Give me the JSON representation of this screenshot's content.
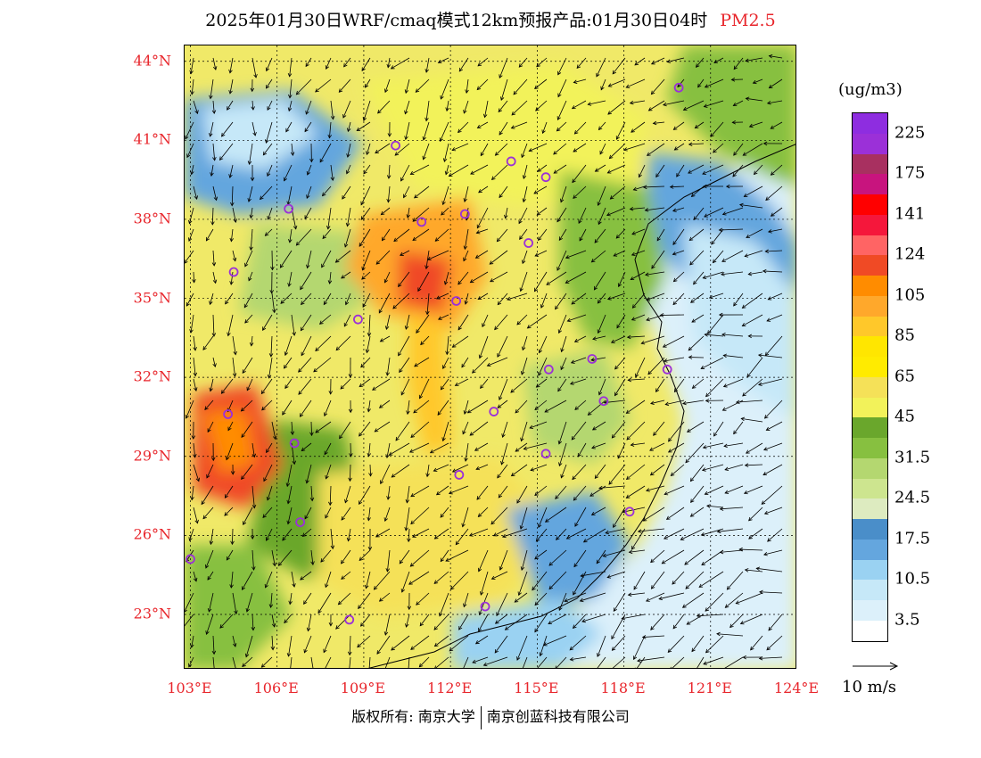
{
  "title": "2025年01月30日WRF/cmaq模式12km预报产品:01月30日04时",
  "species": "PM2.5",
  "map": {
    "lat_labels": [
      {
        "text": "44°N",
        "lat": 44
      },
      {
        "text": "41°N",
        "lat": 41
      },
      {
        "text": "38°N",
        "lat": 38
      },
      {
        "text": "35°N",
        "lat": 35
      },
      {
        "text": "32°N",
        "lat": 32
      },
      {
        "text": "29°N",
        "lat": 29
      },
      {
        "text": "26°N",
        "lat": 26
      },
      {
        "text": "23°N",
        "lat": 23
      }
    ],
    "lon_labels": [
      {
        "text": "103°E",
        "lon": 103
      },
      {
        "text": "106°E",
        "lon": 106
      },
      {
        "text": "109°E",
        "lon": 109
      },
      {
        "text": "112°E",
        "lon": 112
      },
      {
        "text": "115°E",
        "lon": 115
      },
      {
        "text": "118°E",
        "lon": 118
      },
      {
        "text": "121°E",
        "lon": 121
      },
      {
        "text": "124°E",
        "lon": 124
      }
    ],
    "extent": {
      "lon_min": 102.8,
      "lon_max": 124,
      "lat_min": 20.9,
      "lat_max": 44.6
    },
    "cities": [
      {
        "lon": 119.9,
        "lat": 43.0
      },
      {
        "lon": 110.1,
        "lat": 40.8
      },
      {
        "lon": 114.1,
        "lat": 40.2
      },
      {
        "lon": 115.3,
        "lat": 39.6
      },
      {
        "lon": 106.4,
        "lat": 38.4
      },
      {
        "lon": 111.0,
        "lat": 37.9
      },
      {
        "lon": 112.5,
        "lat": 38.2
      },
      {
        "lon": 114.7,
        "lat": 37.1
      },
      {
        "lon": 104.5,
        "lat": 36.0
      },
      {
        "lon": 112.2,
        "lat": 34.9
      },
      {
        "lon": 108.8,
        "lat": 34.2
      },
      {
        "lon": 116.9,
        "lat": 32.7
      },
      {
        "lon": 115.4,
        "lat": 32.3
      },
      {
        "lon": 119.5,
        "lat": 32.3
      },
      {
        "lon": 117.3,
        "lat": 31.1
      },
      {
        "lon": 104.3,
        "lat": 30.6
      },
      {
        "lon": 113.5,
        "lat": 30.7
      },
      {
        "lon": 106.6,
        "lat": 29.5
      },
      {
        "lon": 115.3,
        "lat": 29.1
      },
      {
        "lon": 112.3,
        "lat": 28.3
      },
      {
        "lon": 106.8,
        "lat": 26.5
      },
      {
        "lon": 118.2,
        "lat": 26.9
      },
      {
        "lon": 103.0,
        "lat": 25.1
      },
      {
        "lon": 108.5,
        "lat": 22.8
      },
      {
        "lon": 113.2,
        "lat": 23.3
      }
    ]
  },
  "colorbar": {
    "unit": "(ug/m3)",
    "colors": [
      "#8e2de0",
      "#9b30d8",
      "#a83060",
      "#c8147e",
      "#ff0000",
      "#f5173b",
      "#ff6464",
      "#f04a25",
      "#ff8c00",
      "#ffa82b",
      "#ffc82a",
      "#ffe600",
      "#ffeb00",
      "#f5e158",
      "#f2f25a",
      "#6aa72c",
      "#87c040",
      "#b4d770",
      "#cde58f",
      "#ddebc0",
      "#4a8ec9",
      "#64a6de",
      "#9ad2f2",
      "#c6e8f8",
      "#dcf0fa",
      "#ffffff"
    ],
    "labels": [
      "225",
      "175",
      "141",
      "124",
      "105",
      "85",
      "65",
      "45",
      "31.5",
      "24.5",
      "17.5",
      "10.5",
      "3.5"
    ]
  },
  "wind_reference": {
    "label": "10 m/s",
    "speed_ms": 10
  },
  "copyright": {
    "left": "版权所有: 南京大学",
    "right": "南京创蓝科技有限公司"
  }
}
